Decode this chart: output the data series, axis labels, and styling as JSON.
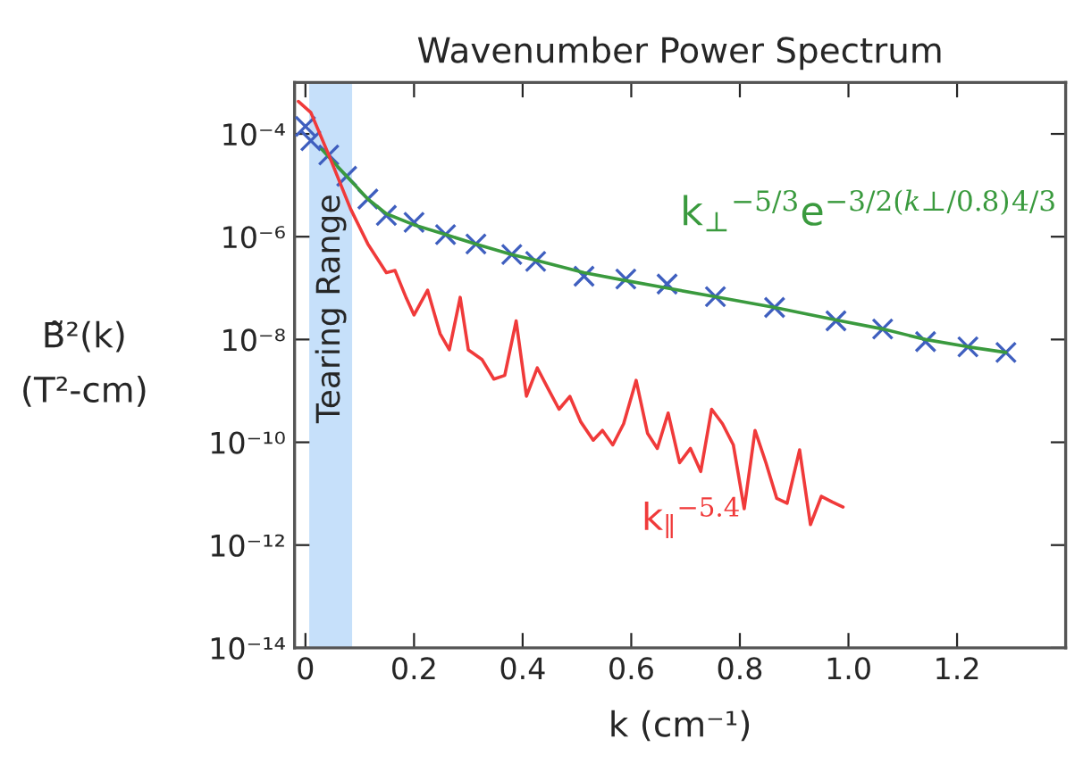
{
  "chart_data": {
    "type": "line",
    "title": "Wavenumber Power Spectrum",
    "xlabel": "k (cm⁻¹)",
    "ylabel": "B̃²(k)\n(T²-cm)",
    "log": "y",
    "grid": false,
    "legend": false,
    "xlim": [
      -0.02,
      1.4
    ],
    "xticks": [
      0,
      0.2,
      0.4,
      0.6,
      0.8,
      {
        "value": 1.0,
        "label": "1.0"
      },
      1.2
    ],
    "ylim": [
      1e-14,
      0.001
    ],
    "yticks": [
      {
        "value": 0.0001,
        "label": "10⁻⁴"
      },
      {
        "value": 1e-06,
        "label": "10⁻⁶"
      },
      {
        "value": 1e-08,
        "label": "10⁻⁸"
      },
      {
        "value": 1e-10,
        "label": "10⁻¹⁰"
      },
      {
        "value": 1e-12,
        "label": "10⁻¹²"
      },
      {
        "value": 1e-14,
        "label": "10⁻¹⁴"
      }
    ],
    "bands": [
      {
        "axis": "x",
        "from": 0.007,
        "to": 0.086,
        "label": "Tearing Range",
        "color": "#c6e0fa"
      }
    ],
    "series": [
      {
        "type": "scatter",
        "marker": "cross",
        "color": "#3f5fbf",
        "x": [
          0.0,
          0.01,
          0.043,
          0.076,
          0.115,
          0.149,
          0.2,
          0.258,
          0.314,
          0.38,
          0.424,
          0.513,
          0.59,
          0.666,
          0.755,
          0.864,
          0.977,
          1.063,
          1.142,
          1.22,
          1.29
        ],
        "values": [
          0.00014,
          7.4e-05,
          3.9e-05,
          1.5e-05,
          5.4e-06,
          2.6e-06,
          1.9e-06,
          1.1e-06,
          7.2e-07,
          4.5e-07,
          3.3e-07,
          1.7e-07,
          1.5e-07,
          1.2e-07,
          6.8e-08,
          4.2e-08,
          2.3e-08,
          1.6e-08,
          9.1e-09,
          7.2e-09,
          5.6e-09
        ]
      },
      {
        "name": "k$_{⊥}$$^{−5/3}$e$^{−3/2(k⊥/0.8)}$$^{4/3}$",
        "color": "#3a9a3e",
        "x": [
          0.03,
          0.076,
          0.115,
          0.149,
          0.2,
          0.258,
          0.314,
          0.38,
          0.424,
          0.513,
          0.59,
          0.666,
          0.755,
          0.864,
          0.977,
          1.063,
          1.142,
          1.22,
          1.29
        ],
        "values": [
          5e-05,
          1.5e-05,
          5.4e-06,
          2.8e-06,
          1.7e-06,
          1.1e-06,
          7.2e-07,
          4.5e-07,
          3.5e-07,
          2e-07,
          1.4e-07,
          1e-07,
          6.8e-08,
          4.2e-08,
          2.4e-08,
          1.6e-08,
          1e-08,
          7.2e-09,
          5.6e-09
        ]
      },
      {
        "name": "k$_{∥}$$^{−5.4}$",
        "color": "#f03a3a",
        "x": [
          -0.013,
          0.01,
          0.043,
          0.083,
          0.115,
          0.149,
          0.165,
          0.186,
          0.2,
          0.225,
          0.248,
          0.265,
          0.285,
          0.3,
          0.325,
          0.347,
          0.367,
          0.388,
          0.407,
          0.427,
          0.447,
          0.467,
          0.487,
          0.507,
          0.53,
          0.547,
          0.566,
          0.586,
          0.609,
          0.63,
          0.648,
          0.668,
          0.689,
          0.709,
          0.728,
          0.748,
          0.768,
          0.788,
          0.808,
          0.828,
          0.848,
          0.868,
          0.887,
          0.91,
          0.93,
          0.95,
          0.97,
          0.99
        ],
        "values": [
          0.00043,
          0.00026,
          3.9e-05,
          3.5e-06,
          7.2e-07,
          2e-07,
          2.2e-07,
          6.3e-08,
          3e-08,
          9.1e-08,
          1.3e-08,
          6.3e-09,
          6.6e-08,
          6.3e-09,
          4.1e-09,
          1.7e-09,
          2e-09,
          2.3e-08,
          7.9e-10,
          2.8e-09,
          1.1e-09,
          4.4e-10,
          7.8e-10,
          2.5e-10,
          1.1e-10,
          1.7e-10,
          8.9e-11,
          2.3e-10,
          1.6e-09,
          1.5e-10,
          7.6e-11,
          3.7e-10,
          4e-11,
          7.6e-11,
          2.7e-11,
          4.4e-10,
          2.3e-10,
          8.9e-11,
          5.1e-12,
          1.7e-10,
          4e-11,
          8.1e-12,
          6.5e-12,
          7.1e-11,
          2.5e-12,
          8.9e-12,
          6.9e-12,
          5.5e-12
        ]
      }
    ]
  }
}
